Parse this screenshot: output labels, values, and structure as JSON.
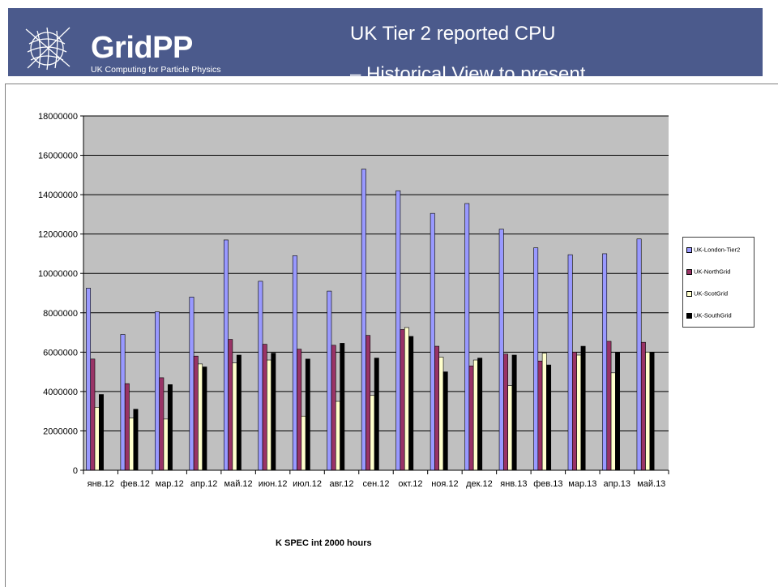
{
  "header": {
    "logo_title": "GridPP",
    "logo_subtitle": "UK Computing for Particle Physics",
    "title_line1": "UK Tier 2 reported CPU",
    "title_line2": "– Historical View to present"
  },
  "colors": {
    "header_bg": "#4b5a8c",
    "plot_bg": "#c0c0c0"
  },
  "chart_data": {
    "type": "bar",
    "categories": [
      "янв.12",
      "фев.12",
      "мар.12",
      "апр.12",
      "май.12",
      "июн.12",
      "июл.12",
      "авг.12",
      "сен.12",
      "окт.12",
      "ноя.12",
      "дек.12",
      "янв.13",
      "фев.13",
      "мар.13",
      "апр.13",
      "май.13"
    ],
    "series": [
      {
        "name": "UK-London-Tier2",
        "color": "#9999ff",
        "values": [
          9250000,
          6900000,
          8050000,
          8800000,
          11700000,
          9600000,
          10900000,
          9100000,
          15300000,
          14200000,
          13050000,
          13550000,
          12250000,
          11300000,
          10950000,
          11000000,
          11750000
        ]
      },
      {
        "name": "UK-NorthGrid",
        "color": "#993366",
        "values": [
          5650000,
          4400000,
          4700000,
          5800000,
          6650000,
          6400000,
          6150000,
          6350000,
          6850000,
          7150000,
          6300000,
          5300000,
          5900000,
          5550000,
          6000000,
          6550000,
          6500000
        ]
      },
      {
        "name": "UK-ScotGrid",
        "color": "#ffffcc",
        "values": [
          3200000,
          2650000,
          2600000,
          5400000,
          5450000,
          5600000,
          2750000,
          3500000,
          3800000,
          7250000,
          5750000,
          5600000,
          4300000,
          5950000,
          5850000,
          4950000,
          6000000
        ]
      },
      {
        "name": "UK-SouthGrid",
        "color": "#000000",
        "values": [
          3850000,
          3100000,
          4350000,
          5250000,
          5850000,
          5950000,
          5650000,
          6450000,
          5700000,
          6800000,
          5000000,
          5700000,
          5850000,
          5350000,
          6300000,
          6000000,
          6000000
        ]
      }
    ],
    "ylim": [
      0,
      18000000
    ],
    "yticks": [
      "0",
      "2000000",
      "4000000",
      "6000000",
      "8000000",
      "10000000",
      "12000000",
      "14000000",
      "16000000",
      "18000000"
    ],
    "xlabel": "K SPEC int 2000 hours",
    "ylabel": "",
    "grid": true,
    "legend_position": "right"
  }
}
